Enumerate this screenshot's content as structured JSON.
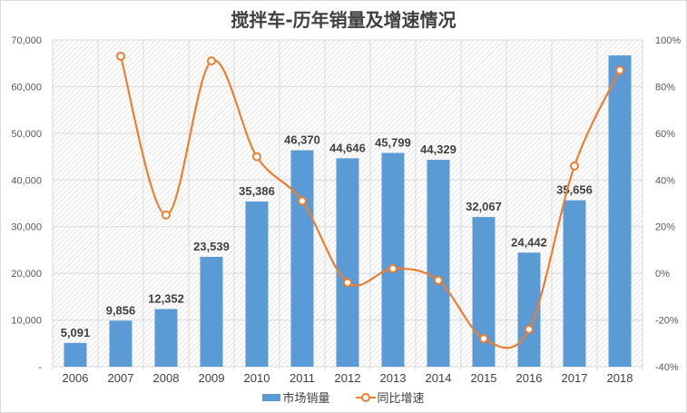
{
  "chart_data": {
    "type": "bar+line",
    "title": "搅拌车-历年销量及增速情况",
    "categories": [
      "2006",
      "2007",
      "2008",
      "2009",
      "2010",
      "2011",
      "2012",
      "2013",
      "2014",
      "2015",
      "2016",
      "2017",
      "2018"
    ],
    "series": [
      {
        "name": "市场销量",
        "type": "bar",
        "axis": "left",
        "color": "#5b9bd5",
        "values": [
          5091,
          9856,
          12352,
          23539,
          35386,
          46370,
          44646,
          45799,
          44329,
          32067,
          24442,
          35656,
          66700
        ],
        "labels": [
          "5,091",
          "9,856",
          "12,352",
          "23,539",
          "35,386",
          "46,370",
          "44,646",
          "45,799",
          "44,329",
          "32,067",
          "24,442",
          "35,656",
          ""
        ]
      },
      {
        "name": "同比增速",
        "type": "line",
        "axis": "right",
        "color": "#ed7d31",
        "smooth": true,
        "values": [
          null,
          93,
          25,
          91,
          50,
          31,
          -4,
          2,
          -3,
          -28,
          -24,
          46,
          87
        ]
      }
    ],
    "left_axis": {
      "min": 0,
      "max": 70000,
      "step": 10000,
      "ticks": [
        "-",
        "10,000",
        "20,000",
        "30,000",
        "40,000",
        "50,000",
        "60,000",
        "70,000"
      ]
    },
    "right_axis": {
      "min": -40,
      "max": 100,
      "step": 20,
      "ticks": [
        "-40%",
        "-20%",
        "0%",
        "20%",
        "40%",
        "60%",
        "80%",
        "100%"
      ]
    },
    "xlabel": "",
    "ylabel": "",
    "grid": true,
    "legend_position": "bottom"
  },
  "legend": {
    "bar_label": "市场销量",
    "line_label": "同比增速"
  }
}
